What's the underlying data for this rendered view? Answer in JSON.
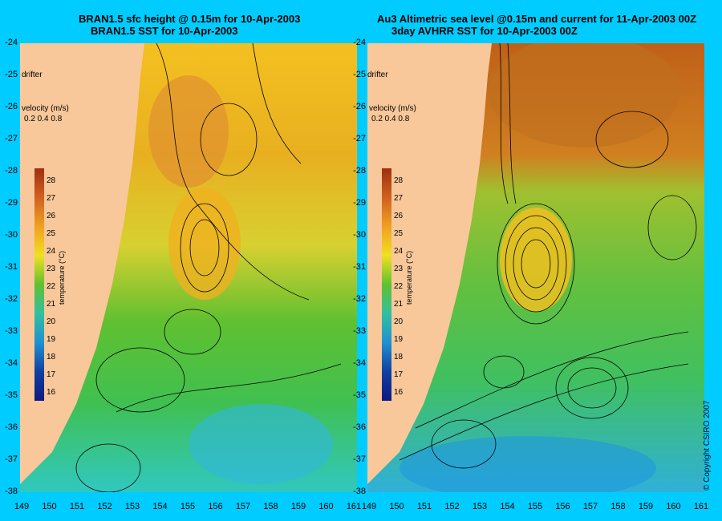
{
  "left_panel": {
    "title_line1": "BRAN1.5 sfc height @ 0.15m for 10-Apr-2003",
    "title_line2": "BRAN1.5 SST for 10-Apr-2003",
    "drifter_label": "drifter",
    "velocity_label": "velocity (m/s)",
    "velocity_scale": "0.2 0.4 0.8",
    "colorbar_title": "temperature (°C)"
  },
  "right_panel": {
    "title_line1": "Au3 Altimetric sea level  @0.15m and current for 11-Apr-2003 00Z",
    "title_line2": "3day AVHRR SST for 10-Apr-2003 00Z",
    "drifter_label": "drifter",
    "velocity_label": "velocity (m/s)",
    "velocity_scale": "0.2 0.4 0.8",
    "colorbar_title": "temperature (°C)"
  },
  "y_ticks": [
    "-24",
    "-25",
    "-26",
    "-27",
    "-28",
    "-29",
    "-30",
    "-31",
    "-32",
    "-33",
    "-34",
    "-35",
    "-36",
    "-37",
    "-38"
  ],
  "x_ticks_left": [
    "149",
    "150",
    "151",
    "152",
    "153",
    "154",
    "155",
    "156",
    "157",
    "158",
    "159",
    "160",
    "161"
  ],
  "x_ticks_right": [
    "149",
    "150",
    "151",
    "152",
    "153",
    "154",
    "155",
    "156",
    "157",
    "158",
    "159",
    "160",
    "161"
  ],
  "colorbar_ticks": [
    "28",
    "27",
    "26",
    "25",
    "24",
    "23",
    "22",
    "21",
    "20",
    "19",
    "18",
    "17",
    "16"
  ],
  "copyright": "© Copyright CSIRO 2007",
  "colors": {
    "background": "#00ccff",
    "land": "#f8c89a",
    "warm": "#c8701a",
    "mid": "#f0c020",
    "green": "#50c030",
    "cool": "#20c8c8"
  }
}
